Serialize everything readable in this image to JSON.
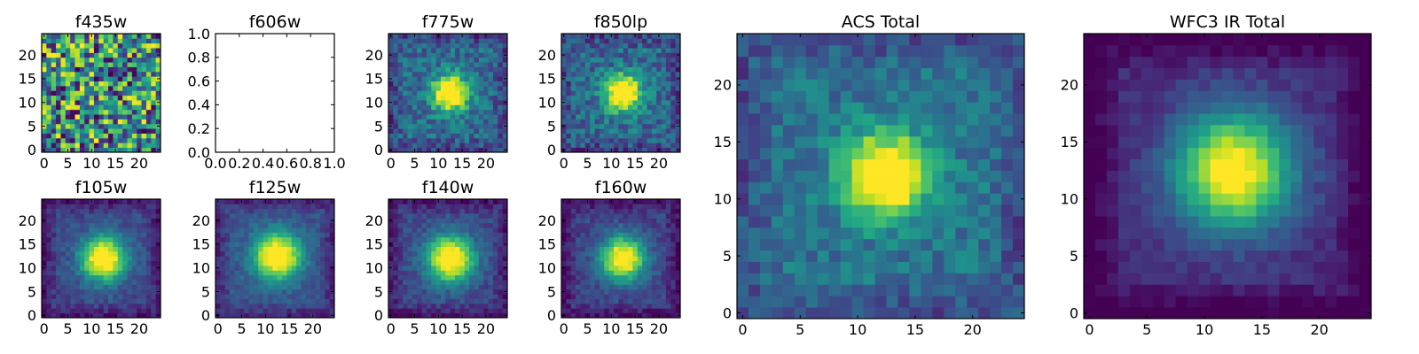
{
  "chart_data": [
    {
      "type": "heatmap",
      "title": "f435w",
      "pattern": "noise",
      "seed": 11,
      "xticks": [
        "0",
        "5",
        "10",
        "15",
        "20"
      ],
      "yticks": [
        "0",
        "5",
        "10",
        "15",
        "20"
      ],
      "xlim": [
        -0.5,
        24.5
      ],
      "ylim": [
        -0.5,
        24.5
      ],
      "colormap": "viridis",
      "origin": "lower"
    },
    {
      "type": "empty",
      "title": "f606w",
      "xticks": [
        "0.0",
        "0.2",
        "0.4",
        "0.6",
        "0.8",
        "1.0"
      ],
      "yticks": [
        "0.0",
        "0.2",
        "0.4",
        "0.6",
        "0.8",
        "1.0"
      ],
      "xlim": [
        0,
        1
      ],
      "ylim": [
        0,
        1
      ]
    },
    {
      "type": "heatmap",
      "title": "f775w",
      "pattern": "source",
      "seed": 23,
      "center": [
        12.5,
        12
      ],
      "sigma": 2.6,
      "amp": 0.95,
      "bg": 0.35,
      "noise": 0.32,
      "xticks": [
        "0",
        "5",
        "10",
        "15",
        "20"
      ],
      "yticks": [
        "0",
        "5",
        "10",
        "15",
        "20"
      ],
      "xlim": [
        -0.5,
        24.5
      ],
      "ylim": [
        -0.5,
        24.5
      ],
      "colormap": "viridis",
      "origin": "lower"
    },
    {
      "type": "heatmap",
      "title": "f850lp",
      "pattern": "source",
      "seed": 37,
      "center": [
        12.5,
        12
      ],
      "sigma": 2.6,
      "amp": 0.95,
      "bg": 0.35,
      "noise": 0.34,
      "xticks": [
        "0",
        "5",
        "10",
        "15",
        "20"
      ],
      "yticks": [
        "0",
        "5",
        "10",
        "15",
        "20"
      ],
      "xlim": [
        -0.5,
        24.5
      ],
      "ylim": [
        -0.5,
        24.5
      ],
      "colormap": "viridis",
      "origin": "lower"
    },
    {
      "type": "heatmap",
      "title": "ACS Total",
      "pattern": "source",
      "seed": 51,
      "center": [
        12.5,
        12
      ],
      "sigma": 2.5,
      "amp": 0.95,
      "bg": 0.38,
      "noise": 0.24,
      "xticks": [
        "0",
        "5",
        "10",
        "15",
        "20"
      ],
      "yticks": [
        "0",
        "5",
        "10",
        "15",
        "20"
      ],
      "xlim": [
        -0.5,
        24.5
      ],
      "ylim": [
        -0.5,
        24.5
      ],
      "colormap": "viridis",
      "origin": "lower"
    },
    {
      "type": "heatmap",
      "title": "WFC3 IR Total",
      "pattern": "source",
      "seed": 67,
      "center": [
        12.5,
        12.5
      ],
      "sigma": 3.6,
      "amp": 0.95,
      "bg": 0.12,
      "noise": 0.1,
      "xticks": [
        "0",
        "5",
        "10",
        "15",
        "20"
      ],
      "yticks": [
        "0",
        "5",
        "10",
        "15",
        "20"
      ],
      "xlim": [
        -0.5,
        24.5
      ],
      "ylim": [
        -0.5,
        24.5
      ],
      "colormap": "viridis",
      "origin": "lower"
    },
    {
      "type": "heatmap",
      "title": "f105w",
      "pattern": "source",
      "seed": 79,
      "center": [
        12.5,
        12
      ],
      "sigma": 3.3,
      "amp": 0.95,
      "bg": 0.22,
      "noise": 0.16,
      "xticks": [
        "0",
        "5",
        "10",
        "15",
        "20"
      ],
      "yticks": [
        "0",
        "5",
        "10",
        "15",
        "20"
      ],
      "xlim": [
        -0.5,
        24.5
      ],
      "ylim": [
        -0.5,
        24.5
      ],
      "colormap": "viridis",
      "origin": "lower"
    },
    {
      "type": "heatmap",
      "title": "f125w",
      "pattern": "source",
      "seed": 83,
      "center": [
        12.5,
        12.5
      ],
      "sigma": 3.4,
      "amp": 0.95,
      "bg": 0.26,
      "noise": 0.15,
      "xticks": [
        "0",
        "5",
        "10",
        "15",
        "20"
      ],
      "yticks": [
        "0",
        "5",
        "10",
        "15",
        "20"
      ],
      "xlim": [
        -0.5,
        24.5
      ],
      "ylim": [
        -0.5,
        24.5
      ],
      "colormap": "viridis",
      "origin": "lower"
    },
    {
      "type": "heatmap",
      "title": "f140w",
      "pattern": "source",
      "seed": 97,
      "center": [
        12.5,
        12
      ],
      "sigma": 3.4,
      "amp": 0.95,
      "bg": 0.22,
      "noise": 0.16,
      "xticks": [
        "0",
        "5",
        "10",
        "15",
        "20"
      ],
      "yticks": [
        "0",
        "5",
        "10",
        "15",
        "20"
      ],
      "xlim": [
        -0.5,
        24.5
      ],
      "ylim": [
        -0.5,
        24.5
      ],
      "colormap": "viridis",
      "origin": "lower"
    },
    {
      "type": "heatmap",
      "title": "f160w",
      "pattern": "source",
      "seed": 101,
      "center": [
        12.5,
        12
      ],
      "sigma": 3.2,
      "amp": 0.95,
      "bg": 0.2,
      "noise": 0.17,
      "xticks": [
        "0",
        "5",
        "10",
        "15",
        "20"
      ],
      "yticks": [
        "0",
        "5",
        "10",
        "15",
        "20"
      ],
      "xlim": [
        -0.5,
        24.5
      ],
      "ylim": [
        -0.5,
        24.5
      ],
      "colormap": "viridis",
      "origin": "lower"
    }
  ]
}
